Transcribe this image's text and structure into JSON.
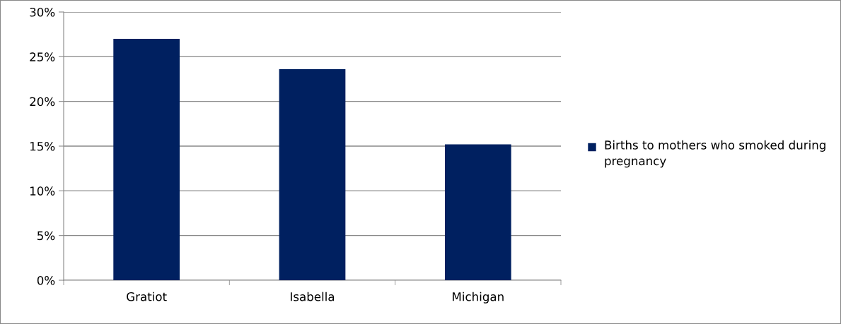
{
  "chart_data": {
    "type": "bar",
    "categories": [
      "Gratiot",
      "Isabella",
      "Michigan"
    ],
    "series": [
      {
        "name": "Births to mothers who smoked during pregnancy",
        "color": "#002060",
        "values": [
          27.0,
          23.6,
          15.2
        ]
      }
    ],
    "ylim": [
      0,
      30
    ],
    "yticks": [
      {
        "value": 0,
        "label": "0%"
      },
      {
        "value": 5,
        "label": "5%"
      },
      {
        "value": 10,
        "label": "10%"
      },
      {
        "value": 15,
        "label": "15%"
      },
      {
        "value": 20,
        "label": "20%"
      },
      {
        "value": 25,
        "label": "25%"
      },
      {
        "value": 30,
        "label": "30%"
      }
    ],
    "grid": "y",
    "legend": "right"
  }
}
